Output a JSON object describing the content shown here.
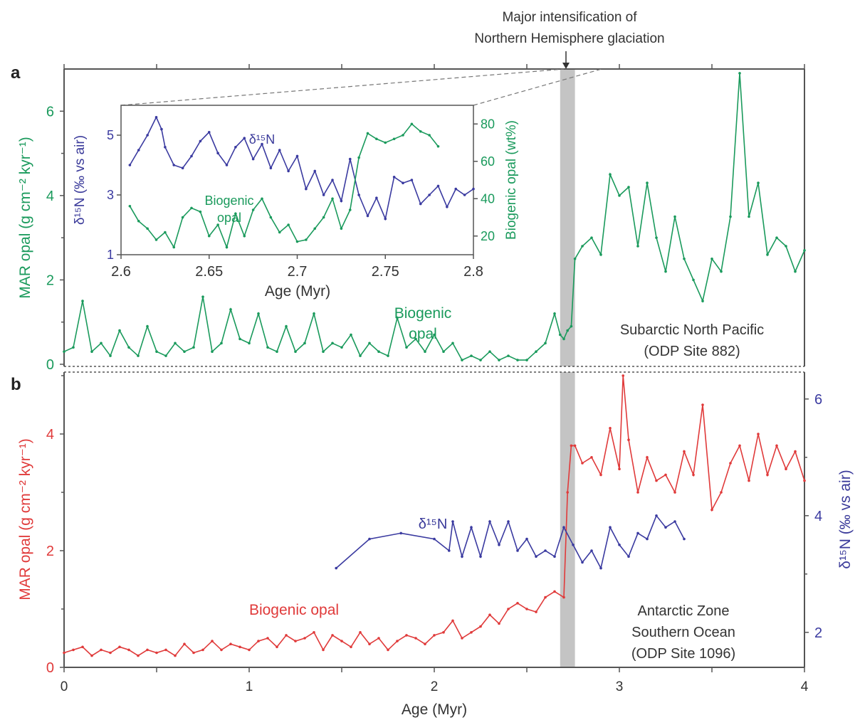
{
  "annotation": {
    "line1": "Major intensification of",
    "line2": "Northern Hemisphere glaciation"
  },
  "colors": {
    "green": "#1a9a5c",
    "red": "#e03a3a",
    "blue": "#3a3aa0",
    "shade": "#c4c4c4"
  },
  "chart_data": [
    {
      "panel": "a",
      "type": "line",
      "site_label": [
        "Subarctic North Pacific",
        "(ODP Site 882)"
      ],
      "series_label": [
        "Biogenic",
        "opal"
      ],
      "ylabel": "MAR opal (g cm⁻² kyr⁻¹)",
      "xlim": [
        0,
        4
      ],
      "ylim": [
        0,
        7
      ],
      "yticks": [
        0,
        2,
        4,
        6
      ],
      "series": [
        {
          "name": "Biogenic opal",
          "axis": "left",
          "x": [
            0.0,
            0.05,
            0.1,
            0.15,
            0.2,
            0.25,
            0.3,
            0.35,
            0.4,
            0.45,
            0.5,
            0.55,
            0.6,
            0.65,
            0.7,
            0.75,
            0.8,
            0.85,
            0.9,
            0.95,
            1.0,
            1.05,
            1.1,
            1.15,
            1.2,
            1.25,
            1.3,
            1.35,
            1.4,
            1.45,
            1.5,
            1.55,
            1.6,
            1.65,
            1.7,
            1.75,
            1.8,
            1.85,
            1.9,
            1.95,
            2.0,
            2.05,
            2.1,
            2.15,
            2.2,
            2.25,
            2.3,
            2.35,
            2.4,
            2.45,
            2.5,
            2.55,
            2.6,
            2.65,
            2.68,
            2.7,
            2.72,
            2.74,
            2.76,
            2.8,
            2.85,
            2.9,
            2.95,
            3.0,
            3.05,
            3.1,
            3.15,
            3.2,
            3.25,
            3.3,
            3.35,
            3.4,
            3.45,
            3.5,
            3.55,
            3.6,
            3.65,
            3.7,
            3.75,
            3.8,
            3.85,
            3.9,
            3.95,
            4.0
          ],
          "y": [
            0.3,
            0.4,
            1.5,
            0.3,
            0.5,
            0.2,
            0.8,
            0.4,
            0.2,
            0.9,
            0.3,
            0.2,
            0.5,
            0.3,
            0.4,
            1.6,
            0.3,
            0.5,
            1.3,
            0.6,
            0.5,
            1.2,
            0.4,
            0.3,
            0.9,
            0.3,
            0.5,
            1.2,
            0.3,
            0.5,
            0.4,
            0.7,
            0.2,
            0.5,
            0.3,
            0.2,
            1.1,
            0.4,
            0.6,
            0.3,
            0.7,
            0.3,
            0.5,
            0.1,
            0.2,
            0.1,
            0.3,
            0.1,
            0.2,
            0.1,
            0.1,
            0.3,
            0.5,
            1.2,
            0.7,
            0.6,
            0.8,
            0.9,
            2.5,
            2.8,
            3.0,
            2.6,
            4.5,
            4.0,
            4.2,
            2.8,
            4.3,
            3.0,
            2.2,
            3.5,
            2.5,
            2.0,
            1.5,
            2.5,
            2.2,
            3.5,
            6.9,
            3.5,
            4.3,
            2.6,
            3.0,
            2.8,
            2.2,
            2.7
          ]
        }
      ]
    },
    {
      "panel": "a-inset",
      "type": "line",
      "xlabel": "Age  (Myr)",
      "ylabel_left": "δ¹⁵N (‰ vs air)",
      "ylabel_right": "Biogenic opal (wt%)",
      "xlim": [
        2.6,
        2.8
      ],
      "ylim_left": [
        1,
        6
      ],
      "ylim_right": [
        10,
        90
      ],
      "xticks": [
        "2.6",
        "2.65",
        "2.7",
        "2.75",
        "2.8"
      ],
      "yticks_left": [
        1,
        3,
        5
      ],
      "yticks_right": [
        20,
        40,
        60,
        80
      ],
      "labels": {
        "d15n": "δ¹⁵N",
        "opal": [
          "Biogenic",
          "opal"
        ]
      },
      "series": [
        {
          "name": "δ¹⁵N",
          "axis": "left",
          "x": [
            2.605,
            2.61,
            2.615,
            2.62,
            2.623,
            2.625,
            2.63,
            2.635,
            2.64,
            2.645,
            2.65,
            2.655,
            2.66,
            2.665,
            2.67,
            2.675,
            2.68,
            2.685,
            2.69,
            2.695,
            2.7,
            2.705,
            2.71,
            2.715,
            2.72,
            2.725,
            2.73,
            2.735,
            2.74,
            2.745,
            2.75,
            2.755,
            2.76,
            2.765,
            2.77,
            2.775,
            2.78,
            2.785,
            2.79,
            2.795,
            2.8
          ],
          "y": [
            4.0,
            4.5,
            5.0,
            5.6,
            5.2,
            4.6,
            4.0,
            3.9,
            4.3,
            4.8,
            5.1,
            4.4,
            4.0,
            4.6,
            4.9,
            4.2,
            4.7,
            3.9,
            4.5,
            3.8,
            4.3,
            3.2,
            3.8,
            3.0,
            3.5,
            2.8,
            4.2,
            3.0,
            2.3,
            2.9,
            2.2,
            3.6,
            3.4,
            3.5,
            2.7,
            3.0,
            3.3,
            2.6,
            3.2,
            3.0,
            3.2
          ]
        },
        {
          "name": "Biogenic opal",
          "axis": "right",
          "x": [
            2.605,
            2.61,
            2.615,
            2.62,
            2.625,
            2.63,
            2.635,
            2.64,
            2.645,
            2.65,
            2.655,
            2.66,
            2.665,
            2.67,
            2.675,
            2.68,
            2.685,
            2.69,
            2.695,
            2.7,
            2.705,
            2.71,
            2.715,
            2.72,
            2.725,
            2.73,
            2.735,
            2.74,
            2.745,
            2.75,
            2.755,
            2.76,
            2.765,
            2.77,
            2.775,
            2.78
          ],
          "y": [
            36,
            28,
            24,
            18,
            22,
            14,
            30,
            35,
            33,
            20,
            26,
            14,
            32,
            20,
            34,
            40,
            30,
            22,
            26,
            17,
            18,
            24,
            30,
            40,
            24,
            34,
            62,
            75,
            72,
            70,
            72,
            74,
            80,
            76,
            74,
            68
          ]
        }
      ]
    },
    {
      "panel": "b",
      "type": "line",
      "site_label": [
        "Antarctic Zone",
        "Southern Ocean",
        "(ODP Site 1096)"
      ],
      "series_label": "Biogenic opal",
      "d15n_label": "δ¹⁵N",
      "xlabel": "Age (Myr)",
      "ylabel_left": "MAR opal (g cm⁻² kyr⁻¹)",
      "ylabel_right": "δ¹⁵N (‰ vs air)",
      "xlim": [
        0,
        4
      ],
      "ylim_left": [
        0,
        5
      ],
      "ylim_right": [
        1.4,
        6.4
      ],
      "xticks": [
        0,
        1,
        2,
        3,
        4
      ],
      "yticks_left": [
        0,
        2,
        4
      ],
      "yticks_right": [
        2,
        4,
        6
      ],
      "shaded_band_x": [
        2.68,
        2.76
      ],
      "series": [
        {
          "name": "Biogenic opal",
          "axis": "left",
          "x": [
            0.0,
            0.05,
            0.1,
            0.15,
            0.2,
            0.25,
            0.3,
            0.35,
            0.4,
            0.45,
            0.5,
            0.55,
            0.6,
            0.65,
            0.7,
            0.75,
            0.8,
            0.85,
            0.9,
            0.95,
            1.0,
            1.05,
            1.1,
            1.15,
            1.2,
            1.25,
            1.3,
            1.35,
            1.4,
            1.45,
            1.5,
            1.55,
            1.6,
            1.65,
            1.7,
            1.75,
            1.8,
            1.85,
            1.9,
            1.95,
            2.0,
            2.05,
            2.1,
            2.15,
            2.2,
            2.25,
            2.3,
            2.35,
            2.4,
            2.45,
            2.5,
            2.55,
            2.6,
            2.65,
            2.7,
            2.72,
            2.74,
            2.76,
            2.8,
            2.85,
            2.9,
            2.95,
            3.0,
            3.02,
            3.05,
            3.1,
            3.15,
            3.2,
            3.25,
            3.3,
            3.35,
            3.4,
            3.45,
            3.5,
            3.55,
            3.6,
            3.65,
            3.7,
            3.75,
            3.8,
            3.85,
            3.9,
            3.95,
            4.0
          ],
          "y": [
            0.25,
            0.3,
            0.35,
            0.2,
            0.3,
            0.25,
            0.35,
            0.3,
            0.2,
            0.3,
            0.25,
            0.3,
            0.2,
            0.4,
            0.25,
            0.3,
            0.45,
            0.3,
            0.4,
            0.35,
            0.3,
            0.45,
            0.5,
            0.35,
            0.55,
            0.45,
            0.5,
            0.6,
            0.3,
            0.55,
            0.45,
            0.35,
            0.6,
            0.4,
            0.5,
            0.3,
            0.45,
            0.55,
            0.5,
            0.4,
            0.55,
            0.6,
            0.8,
            0.5,
            0.6,
            0.7,
            0.9,
            0.75,
            1.0,
            1.1,
            1.0,
            0.95,
            1.2,
            1.3,
            1.2,
            3.0,
            3.8,
            3.8,
            3.5,
            3.6,
            3.3,
            4.1,
            3.4,
            5.0,
            3.9,
            3.0,
            3.6,
            3.2,
            3.3,
            3.0,
            3.7,
            3.3,
            4.5,
            2.7,
            3.0,
            3.5,
            3.8,
            3.2,
            4.0,
            3.3,
            3.8,
            3.4,
            3.7,
            3.2
          ]
        },
        {
          "name": "δ¹⁵N",
          "axis": "right",
          "x": [
            1.47,
            1.65,
            1.82,
            2.0,
            2.08,
            2.1,
            2.15,
            2.2,
            2.25,
            2.3,
            2.35,
            2.4,
            2.45,
            2.5,
            2.55,
            2.6,
            2.65,
            2.7,
            2.75,
            2.8,
            2.85,
            2.9,
            2.95,
            3.0,
            3.05,
            3.1,
            3.15,
            3.2,
            3.25,
            3.3,
            3.35
          ],
          "y": [
            3.1,
            3.6,
            3.7,
            3.6,
            3.4,
            3.9,
            3.3,
            3.8,
            3.3,
            3.9,
            3.5,
            3.9,
            3.4,
            3.6,
            3.3,
            3.4,
            3.3,
            3.8,
            3.5,
            3.2,
            3.4,
            3.1,
            3.8,
            3.5,
            3.3,
            3.7,
            3.6,
            4.0,
            3.8,
            3.9,
            3.6
          ]
        }
      ]
    }
  ]
}
